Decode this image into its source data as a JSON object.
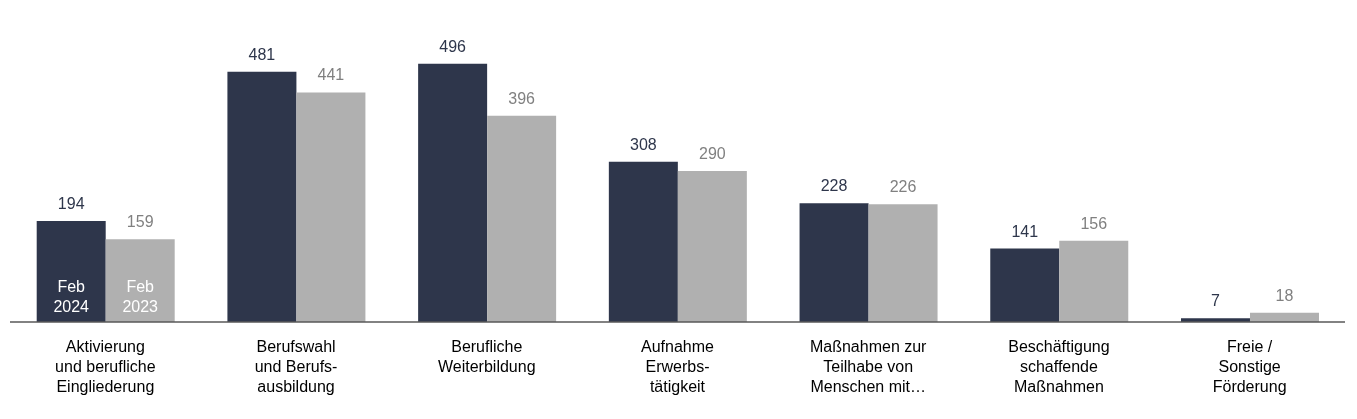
{
  "chart_data": {
    "type": "bar",
    "categories": [
      "Aktivierung\nund berufliche\nEingliederung",
      "Berufswahl\nund Berufs-\nausbildung",
      "Berufliche\nWeiterbildung",
      "Aufnahme\nErwerbs-\ntätigkeit",
      "Maßnahmen zur\nTeilhabe von\nMenschen mit…",
      "Beschäftigung\nschaffende\nMaßnahmen",
      "Freie /\nSonstige\nFörderung"
    ],
    "series": [
      {
        "name": "Feb 2024",
        "color": "#2e364b",
        "values": [
          194,
          481,
          496,
          308,
          228,
          141,
          7
        ]
      },
      {
        "name": "Feb 2023",
        "color": "#b0b0b0",
        "values": [
          159,
          441,
          396,
          290,
          226,
          156,
          18
        ]
      }
    ],
    "data_labels": true,
    "tick_labels": "x",
    "grid": false,
    "legend": false
  }
}
